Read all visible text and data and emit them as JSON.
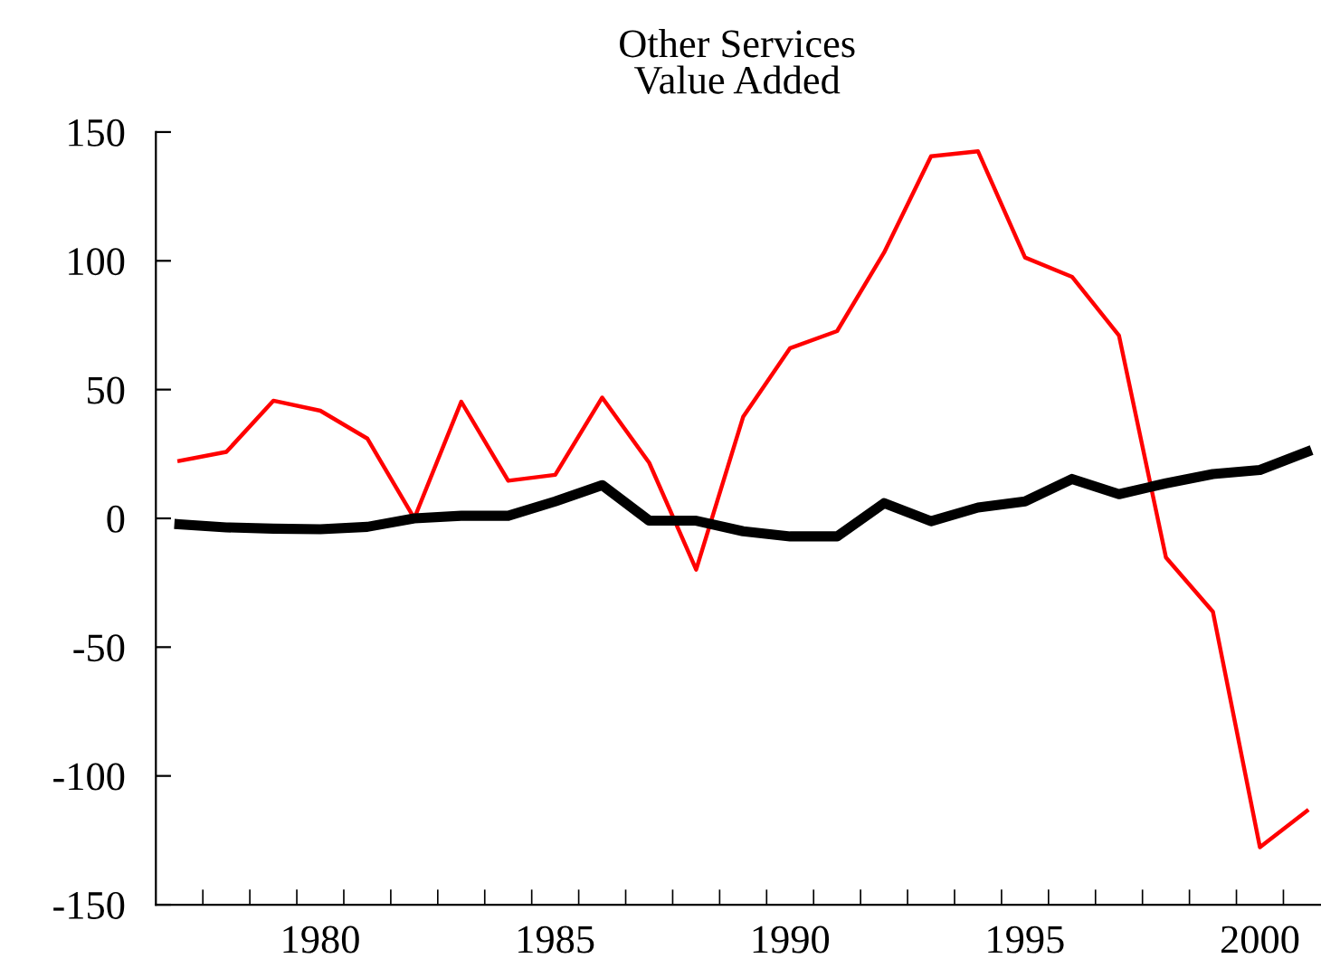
{
  "chart_data": {
    "type": "line",
    "title": "Other Services\nValue Added",
    "x": [
      1977,
      1978,
      1979,
      1980,
      1981,
      1982,
      1983,
      1984,
      1985,
      1986,
      1987,
      1988,
      1989,
      1990,
      1991,
      1992,
      1993,
      1994,
      1995,
      1996,
      1997,
      1998,
      1999,
      2000,
      2001
    ],
    "series": [
      {
        "color": "#ff0000",
        "values": [
          22.3,
          25.8,
          45.7,
          41.8,
          31,
          0,
          45.3,
          14.6,
          16.9,
          46.9,
          21.6,
          -19.9,
          39.4,
          66.1,
          72.7,
          103.2,
          140.6,
          142.5,
          101.3,
          93.8,
          71,
          -15.2,
          -36.3,
          -127.7,
          -113.6
        ]
      },
      {
        "color": "#000000",
        "values": [
          -2.3,
          -3.5,
          -4,
          -4.2,
          -3.3,
          0,
          1,
          1,
          6.6,
          12.9,
          -0.9,
          -0.9,
          -5,
          -7,
          -7,
          5.9,
          -1.1,
          4.2,
          6.6,
          15.3,
          9.4,
          13.6,
          17.2,
          18.8,
          25.8
        ]
      }
    ],
    "xlim": [
      1976.5,
      2001.3
    ],
    "ylim": [
      -150,
      150
    ],
    "xticks": [
      {
        "value": 1977.5,
        "label": null
      },
      {
        "value": 1978.5,
        "label": null
      },
      {
        "value": 1979.5,
        "label": null
      },
      1980,
      {
        "value": 1980.5,
        "label": null
      },
      {
        "value": 1981.5,
        "label": null
      },
      {
        "value": 1982.5,
        "label": null
      },
      {
        "value": 1983.5,
        "label": null
      },
      {
        "value": 1984.5,
        "label": null
      },
      1985,
      {
        "value": 1985.5,
        "label": null
      },
      {
        "value": 1986.5,
        "label": null
      },
      {
        "value": 1987.5,
        "label": null
      },
      {
        "value": 1988.5,
        "label": null
      },
      {
        "value": 1989.5,
        "label": null
      },
      1990,
      {
        "value": 1990.5,
        "label": null
      },
      {
        "value": 1991.5,
        "label": null
      },
      {
        "value": 1992.5,
        "label": null
      },
      {
        "value": 1993.5,
        "label": null
      },
      {
        "value": 1994.5,
        "label": null
      },
      1995,
      {
        "value": 1995.5,
        "label": null
      },
      {
        "value": 1996.5,
        "label": null
      },
      {
        "value": 1997.5,
        "label": null
      },
      {
        "value": 1998.5,
        "label": null
      },
      {
        "value": 1999.5,
        "label": null
      },
      2000,
      {
        "value": 2000.5,
        "label": null
      }
    ],
    "yticks": [
      -150,
      -100,
      -50,
      0,
      50,
      100,
      150
    ],
    "grid": false,
    "legend": false,
    "marker": "none",
    "line_style": "solid"
  }
}
